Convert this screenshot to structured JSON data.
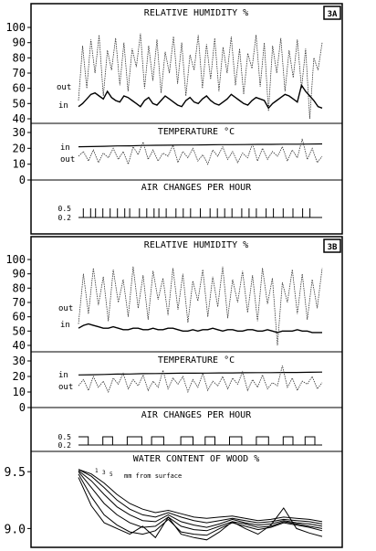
{
  "chart_data": [
    {
      "type": "line",
      "badge": "3A",
      "title": "RELATIVE HUMIDITY %",
      "ylim": [
        40,
        100
      ],
      "yticks": [
        40,
        50,
        60,
        70,
        80,
        90,
        100
      ],
      "series": [
        {
          "name": "out",
          "values": [
            52,
            88,
            60,
            92,
            70,
            95,
            55,
            85,
            72,
            93,
            62,
            90,
            58,
            86,
            74,
            96,
            60,
            88,
            65,
            92,
            57,
            84,
            70,
            94,
            63,
            90,
            55,
            82,
            72,
            95,
            60,
            89,
            66,
            93,
            58,
            87,
            70,
            94,
            62,
            86,
            56,
            83,
            73,
            95,
            61,
            90,
            45,
            88,
            70,
            93,
            58,
            85,
            67,
            92,
            60,
            86,
            40,
            80,
            72,
            90
          ]
        },
        {
          "name": "in",
          "values": [
            48,
            50,
            53,
            56,
            57,
            55,
            53,
            58,
            54,
            52,
            51,
            55,
            54,
            52,
            50,
            48,
            52,
            54,
            50,
            49,
            52,
            55,
            53,
            51,
            49,
            48,
            52,
            54,
            51,
            50,
            53,
            55,
            52,
            50,
            49,
            51,
            53,
            56,
            54,
            52,
            50,
            49,
            52,
            54,
            53,
            52,
            47,
            50,
            52,
            54,
            56,
            55,
            53,
            51,
            62,
            58,
            55,
            52,
            48,
            47
          ]
        }
      ]
    },
    {
      "type": "line",
      "title": "TEMPERATURE °C",
      "ylim": [
        0,
        30
      ],
      "yticks": [
        0,
        10,
        20,
        30
      ],
      "series": [
        {
          "name": "in",
          "values": [
            21,
            21.1,
            21.3,
            21.5,
            21.6,
            21.8,
            21.9,
            22,
            22.1,
            22.1,
            22.2,
            22.3,
            22.3,
            22.4,
            22.5,
            22.5,
            22.6,
            22.6,
            22.7,
            22.8
          ]
        },
        {
          "name": "out",
          "values": [
            15,
            18,
            12,
            19,
            11,
            17,
            14,
            20,
            13,
            18,
            10,
            21,
            16,
            24,
            13,
            19,
            12,
            17,
            15,
            22,
            11,
            18,
            14,
            20,
            12,
            16,
            10,
            19,
            15,
            21,
            13,
            18,
            11,
            17,
            14,
            23,
            12,
            20,
            13,
            18,
            15,
            21,
            12,
            19,
            14,
            26,
            13,
            20,
            11,
            15
          ]
        }
      ]
    },
    {
      "type": "line",
      "title": "AIR CHANGES PER HOUR",
      "yticks": [
        "0.5",
        "0.2"
      ],
      "base": 0.2,
      "peak": 0.5,
      "spikes": [
        0.02,
        0.05,
        0.07,
        0.1,
        0.13,
        0.16,
        0.19,
        0.21,
        0.25,
        0.28,
        0.31,
        0.33,
        0.36,
        0.4,
        0.43,
        0.46,
        0.5,
        0.54,
        0.57,
        0.6,
        0.63,
        0.67,
        0.7,
        0.73,
        0.77,
        0.8,
        0.84,
        0.88,
        0.92,
        0.95
      ]
    },
    {
      "type": "line",
      "badge": "3B",
      "title": "RELATIVE HUMIDITY %",
      "ylim": [
        40,
        100
      ],
      "yticks": [
        40,
        50,
        60,
        70,
        80,
        90,
        100
      ],
      "series": [
        {
          "name": "out",
          "values": [
            55,
            90,
            62,
            94,
            68,
            88,
            57,
            93,
            70,
            86,
            60,
            95,
            66,
            89,
            58,
            92,
            72,
            87,
            61,
            94,
            65,
            90,
            56,
            85,
            71,
            93,
            60,
            88,
            67,
            95,
            59,
            86,
            70,
            92,
            63,
            89,
            57,
            94,
            69,
            87,
            40,
            84,
            70,
            93,
            62,
            90,
            58,
            86,
            66,
            94
          ]
        },
        {
          "name": "in",
          "values": [
            52,
            54,
            55,
            54,
            53,
            52,
            52,
            53,
            52,
            51,
            51,
            52,
            52,
            51,
            51,
            52,
            51,
            51,
            52,
            52,
            51,
            50,
            50,
            51,
            50,
            51,
            51,
            52,
            51,
            50,
            51,
            51,
            50,
            50,
            51,
            51,
            50,
            50,
            51,
            50,
            49,
            50,
            50,
            50,
            51,
            50,
            50,
            49,
            49,
            49
          ]
        }
      ]
    },
    {
      "type": "line",
      "title": "TEMPERATURE °C",
      "ylim": [
        0,
        30
      ],
      "yticks": [
        0,
        10,
        20,
        30
      ],
      "series": [
        {
          "name": "in",
          "values": [
            21,
            21.1,
            21.3,
            21.5,
            21.6,
            21.8,
            21.9,
            22,
            22.1,
            22.1,
            22.2,
            22.3,
            22.3,
            22.4,
            22.5,
            22.5,
            22.6,
            22.6,
            22.7,
            22.8
          ]
        },
        {
          "name": "out",
          "values": [
            14,
            18,
            11,
            20,
            13,
            17,
            10,
            19,
            15,
            22,
            12,
            18,
            14,
            21,
            11,
            17,
            13,
            24,
            12,
            19,
            15,
            20,
            10,
            18,
            13,
            22,
            11,
            17,
            14,
            20,
            12,
            19,
            15,
            23,
            11,
            18,
            13,
            21,
            12,
            16,
            14,
            27,
            13,
            19,
            11,
            17,
            15,
            20,
            12,
            16
          ]
        }
      ]
    },
    {
      "type": "line",
      "title": "AIR CHANGES PER HOUR",
      "yticks": [
        "0.5",
        "0.2"
      ],
      "base": 0.2,
      "peak": 0.5,
      "steps": [
        [
          0.0,
          0.5
        ],
        [
          0.04,
          0.2
        ],
        [
          0.1,
          0.5
        ],
        [
          0.14,
          0.2
        ],
        [
          0.2,
          0.5
        ],
        [
          0.26,
          0.2
        ],
        [
          0.3,
          0.5
        ],
        [
          0.35,
          0.2
        ],
        [
          0.42,
          0.5
        ],
        [
          0.47,
          0.2
        ],
        [
          0.52,
          0.5
        ],
        [
          0.56,
          0.2
        ],
        [
          0.62,
          0.5
        ],
        [
          0.67,
          0.2
        ],
        [
          0.73,
          0.5
        ],
        [
          0.78,
          0.2
        ],
        [
          0.84,
          0.5
        ],
        [
          0.88,
          0.2
        ],
        [
          0.93,
          0.5
        ],
        [
          0.97,
          0.2
        ]
      ]
    },
    {
      "type": "line",
      "title": "WATER CONTENT OF WOOD %",
      "annotation": "mm from surface",
      "depth_labels": [
        "1",
        "3",
        "5"
      ],
      "ylim": [
        8.85,
        9.55
      ],
      "yticks": [
        "9.5",
        "9.0"
      ],
      "series": [
        {
          "values": [
            9.52,
            9.48,
            9.4,
            9.3,
            9.22,
            9.17,
            9.14,
            9.16,
            9.13,
            9.1,
            9.09,
            9.1,
            9.11,
            9.09,
            9.07,
            9.08,
            9.1,
            9.09,
            9.08,
            9.06
          ]
        },
        {
          "values": [
            9.52,
            9.46,
            9.36,
            9.25,
            9.17,
            9.12,
            9.1,
            9.14,
            9.1,
            9.07,
            9.05,
            9.07,
            9.09,
            9.07,
            9.05,
            9.06,
            9.08,
            9.07,
            9.06,
            9.04
          ]
        },
        {
          "values": [
            9.51,
            9.42,
            9.3,
            9.19,
            9.12,
            9.07,
            9.06,
            9.12,
            9.06,
            9.03,
            9.01,
            9.04,
            9.08,
            9.05,
            9.03,
            9.04,
            9.07,
            9.05,
            9.04,
            9.02
          ]
        },
        {
          "values": [
            9.5,
            9.36,
            9.22,
            9.12,
            9.05,
            9.01,
            9.02,
            9.1,
            9.02,
            8.99,
            8.98,
            9.02,
            9.06,
            9.04,
            9.01,
            9.02,
            9.06,
            9.04,
            9.02,
            9.0
          ]
        },
        {
          "values": [
            9.48,
            9.28,
            9.12,
            9.03,
            8.97,
            8.95,
            8.98,
            9.08,
            8.97,
            8.95,
            8.94,
            9.0,
            9.05,
            9.02,
            8.99,
            9.01,
            9.05,
            9.03,
            9.01,
            8.98
          ]
        },
        {
          "values": [
            9.45,
            9.2,
            9.05,
            9.0,
            8.95,
            9.02,
            8.92,
            9.1,
            8.95,
            8.92,
            8.9,
            8.97,
            9.06,
            9.0,
            8.95,
            9.03,
            9.18,
            9.0,
            8.96,
            8.93
          ]
        }
      ]
    }
  ]
}
